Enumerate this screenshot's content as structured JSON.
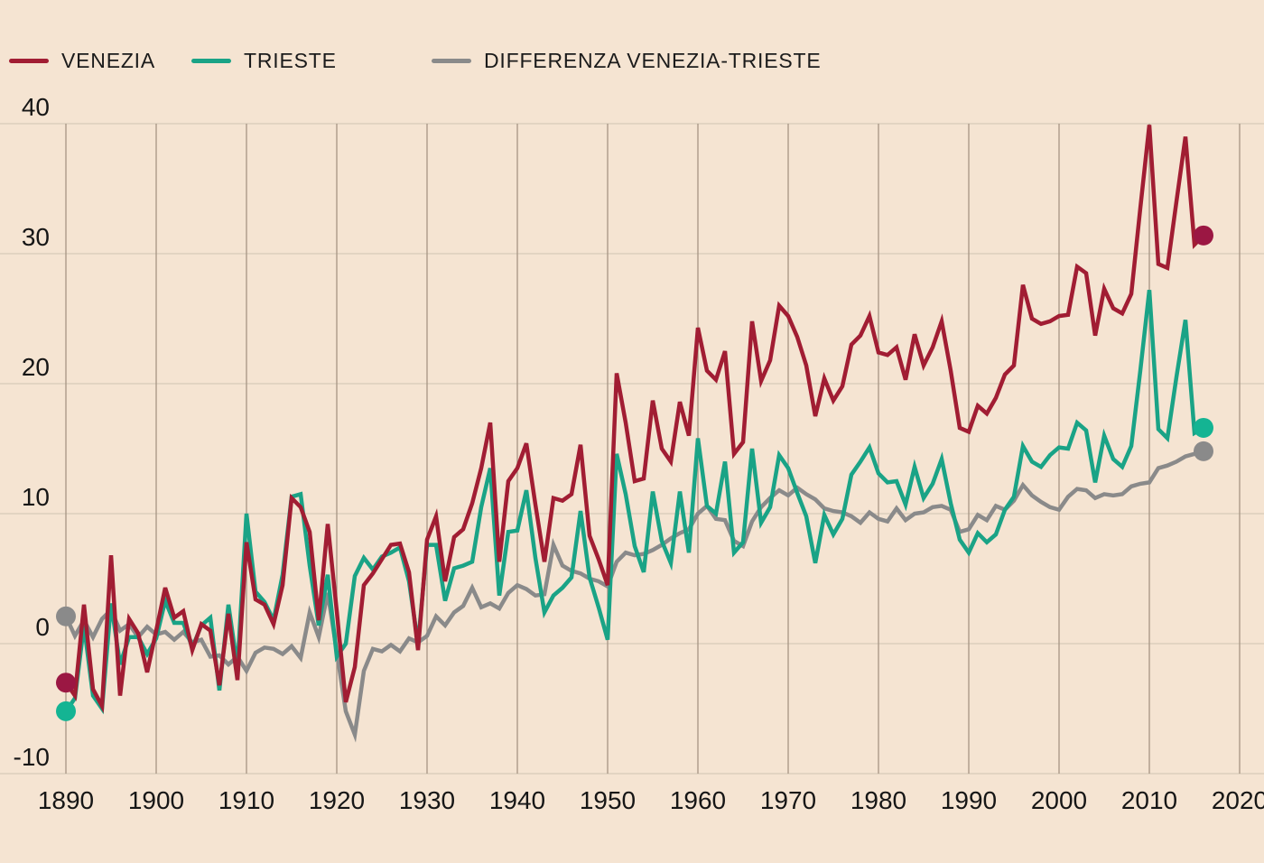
{
  "page": {
    "background_color": "#f5e4d2",
    "text_color": "#161616"
  },
  "legend": [
    {
      "label": "VENEZIA",
      "color": "#a11d33"
    },
    {
      "label": "TRIESTE",
      "color": "#1aa386"
    },
    {
      "label": "DIFFERENZA VENEZIA-TRIESTE",
      "color": "#8a8a8a"
    }
  ],
  "chart_data": {
    "type": "line",
    "x_start": 1890,
    "x_end": 2016,
    "x_step": 1,
    "xlim": [
      1890,
      2020
    ],
    "ylim": [
      -10,
      40
    ],
    "x_ticks": [
      1890,
      1900,
      1910,
      1920,
      1930,
      1940,
      1950,
      1960,
      1970,
      1980,
      1990,
      2000,
      2010,
      2020
    ],
    "y_ticks": [
      40,
      30,
      20,
      10,
      0,
      -10
    ],
    "grid": true,
    "legend_position": "top-left",
    "endpoint_markers": true,
    "grid_colors": {
      "vertical": "#a69584",
      "horizontal": "#d8c9b8"
    },
    "series": [
      {
        "name": "VENEZIA",
        "color": "#a11d33",
        "dot_color": "#9b1743",
        "values": [
          -3.0,
          -4.0,
          3.0,
          -3.5,
          -4.8,
          6.8,
          -4.0,
          1.9,
          0.8,
          -2.2,
          1.0,
          4.3,
          2.0,
          2.5,
          -0.5,
          1.5,
          1.0,
          -3.2,
          2.3,
          -2.8,
          7.8,
          3.4,
          3.0,
          1.5,
          4.5,
          11.2,
          10.5,
          8.6,
          1.8,
          9.2,
          2.5,
          -4.5,
          -1.8,
          4.5,
          5.4,
          6.5,
          7.6,
          7.7,
          5.5,
          -0.5,
          8.0,
          9.8,
          4.8,
          8.2,
          8.8,
          10.8,
          13.5,
          17.0,
          6.3,
          12.5,
          13.5,
          15.4,
          10.7,
          6.3,
          11.2,
          11.0,
          11.5,
          15.3,
          8.3,
          6.5,
          4.5,
          20.8,
          17.0,
          12.5,
          12.7,
          18.7,
          15.0,
          14.0,
          18.6,
          16.0,
          24.3,
          21.0,
          20.3,
          22.5,
          14.6,
          15.5,
          24.8,
          20.2,
          21.8,
          26.0,
          25.2,
          23.6,
          21.4,
          17.5,
          20.4,
          18.7,
          19.8,
          23.0,
          23.7,
          25.2,
          22.4,
          22.2,
          22.8,
          20.3,
          23.8,
          21.4,
          22.8,
          24.8,
          21.0,
          16.6,
          16.3,
          18.3,
          17.7,
          18.9,
          20.7,
          21.4,
          27.6,
          25.0,
          24.6,
          24.8,
          25.2,
          25.3,
          29.0,
          28.5,
          23.7,
          27.3,
          25.8,
          25.4,
          26.9,
          33.5,
          39.9,
          29.2,
          28.9,
          34.0,
          39.0,
          30.7,
          31.4
        ]
      },
      {
        "name": "TRIESTE",
        "color": "#1aa386",
        "dot_color": "#14b493",
        "values": [
          -5.2,
          -4.2,
          1.4,
          -4.0,
          -5.0,
          3.1,
          -1.6,
          0.5,
          0.5,
          -0.8,
          0.4,
          3.3,
          1.6,
          1.6,
          -0.3,
          1.4,
          2.0,
          -3.6,
          3.0,
          -1.8,
          10.0,
          4.0,
          3.2,
          1.8,
          5.3,
          11.3,
          11.5,
          6.0,
          1.4,
          5.3,
          -1.0,
          0.0,
          5.2,
          6.6,
          5.7,
          6.7,
          7.0,
          7.4,
          4.8,
          0.0,
          7.6,
          7.6,
          3.3,
          5.8,
          6.0,
          6.3,
          10.5,
          13.5,
          3.7,
          8.6,
          8.7,
          11.8,
          6.6,
          2.4,
          3.7,
          4.3,
          5.1,
          10.2,
          5.1,
          2.8,
          0.3,
          14.6,
          11.5,
          7.5,
          5.5,
          11.7,
          7.9,
          6.2,
          11.7,
          7.0,
          15.8,
          10.6,
          10.0,
          14.0,
          7.0,
          7.8,
          15.0,
          9.3,
          10.5,
          14.5,
          13.5,
          11.6,
          9.8,
          6.2,
          9.9,
          8.4,
          9.6,
          13.0,
          14.0,
          15.1,
          13.1,
          12.4,
          12.5,
          10.7,
          13.6,
          11.2,
          12.3,
          14.2,
          10.8,
          8.0,
          7.0,
          8.5,
          7.8,
          8.4,
          10.3,
          11.3,
          15.2,
          14.0,
          13.6,
          14.5,
          15.1,
          15.0,
          17.0,
          16.4,
          12.4,
          16.0,
          14.2,
          13.6,
          15.2,
          21.0,
          27.2,
          16.5,
          15.8,
          20.5,
          24.9,
          16.2,
          16.6
        ]
      },
      {
        "name": "DIFFERENZA VENEZIA-TRIESTE",
        "color": "#8a8a8a",
        "dot_color": "#8a8a8a",
        "values": [
          2.1,
          0.6,
          1.8,
          0.5,
          1.9,
          2.6,
          1.0,
          1.5,
          0.5,
          1.3,
          0.7,
          0.9,
          0.3,
          0.9,
          0.1,
          0.3,
          -1.0,
          -0.9,
          -1.6,
          -1.0,
          -2.1,
          -0.7,
          -0.3,
          -0.4,
          -0.8,
          -0.2,
          -1.1,
          2.4,
          0.5,
          3.9,
          -0.6,
          -5.2,
          -7.0,
          -2.1,
          -0.4,
          -0.6,
          -0.1,
          -0.6,
          0.4,
          0.1,
          0.6,
          2.1,
          1.4,
          2.4,
          2.9,
          4.3,
          2.8,
          3.1,
          2.7,
          3.9,
          4.5,
          4.2,
          3.7,
          3.8,
          7.6,
          6.0,
          5.6,
          5.4,
          5.0,
          4.8,
          4.4,
          6.3,
          7.0,
          6.8,
          6.9,
          7.2,
          7.6,
          8.1,
          8.5,
          8.8,
          10.0,
          10.6,
          9.6,
          9.5,
          7.9,
          7.5,
          9.4,
          10.5,
          11.2,
          11.8,
          11.4,
          12.0,
          11.5,
          11.1,
          10.4,
          10.2,
          10.1,
          9.8,
          9.3,
          10.1,
          9.6,
          9.4,
          10.4,
          9.5,
          10.0,
          10.1,
          10.5,
          10.6,
          10.3,
          8.6,
          8.8,
          9.9,
          9.5,
          10.6,
          10.3,
          11.0,
          12.2,
          11.4,
          10.9,
          10.5,
          10.3,
          11.3,
          11.9,
          11.8,
          11.2,
          11.5,
          11.4,
          11.5,
          12.1,
          12.3,
          12.4,
          13.5,
          13.7,
          14.0,
          14.4,
          14.6,
          14.8
        ]
      }
    ]
  }
}
